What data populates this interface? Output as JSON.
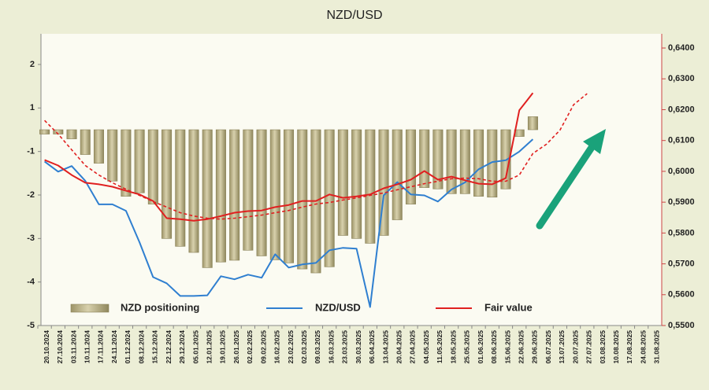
{
  "chart_data": {
    "type": "combo",
    "title": "NZD/USD",
    "categories": [
      "20.10.2024",
      "27.10.2024",
      "03.11.2024",
      "10.11.2024",
      "17.11.2024",
      "24.11.2024",
      "01.12.2024",
      "08.12.2024",
      "15.12.2024",
      "22.12.2024",
      "29.12.2024",
      "05.01.2025",
      "12.01.2025",
      "19.01.2025",
      "26.01.2025",
      "02.02.2025",
      "09.02.2025",
      "16.02.2025",
      "23.02.2025",
      "02.03.2025",
      "09.03.2025",
      "16.03.2025",
      "23.03.2025",
      "30.03.2025",
      "06.04.2025",
      "13.04.2025",
      "20.04.2025",
      "27.04.2025",
      "04.05.2025",
      "11.05.2025",
      "18.05.2025",
      "25.05.2025",
      "01.06.2025",
      "08.06.2025",
      "15.06.2025",
      "22.06.2025",
      "29.06.2025",
      "06.07.2025",
      "13.07.2025",
      "20.07.2025",
      "27.07.2025",
      "03.08.2025",
      "10.08.2025",
      "17.08.2025",
      "24.08.2025",
      "31.08.2025"
    ],
    "series": [
      {
        "name": "NZD positioning",
        "type": "bar",
        "color": "#bfb58a",
        "values": [
          -0.2,
          -0.2,
          -0.42,
          -1.07,
          -1.27,
          -1.68,
          -2.03,
          -1.95,
          -2.21,
          -3.0,
          -3.18,
          -3.32,
          -3.67,
          -3.54,
          -3.5,
          -3.27,
          -3.4,
          -3.49,
          -3.56,
          -3.7,
          -3.79,
          -3.65,
          -2.93,
          -3.0,
          -3.11,
          -2.93,
          -2.57,
          -2.21,
          -1.83,
          -1.86,
          -1.97,
          -1.97,
          -2.03,
          -2.05,
          -1.86,
          -0.31,
          0.6,
          null,
          null,
          null,
          null,
          null,
          null,
          null,
          null,
          null
        ]
      },
      {
        "name": "NZD/USD",
        "type": "line",
        "axis": "y2",
        "color": "#2f7fd0",
        "values": [
          0.6032,
          0.5999,
          0.6017,
          0.5969,
          0.5893,
          0.5893,
          0.5872,
          0.577,
          0.5657,
          0.5637,
          0.5596,
          0.5596,
          0.5598,
          0.566,
          0.565,
          0.5665,
          0.5655,
          0.5731,
          0.5688,
          0.5698,
          0.5703,
          0.5744,
          0.5752,
          0.5749,
          0.556,
          0.5922,
          0.5965,
          0.5925,
          0.5922,
          0.5902,
          0.5941,
          0.5964,
          0.6007,
          0.603,
          0.6036,
          0.6064,
          0.6104,
          null,
          null,
          null,
          null,
          null,
          null,
          null,
          null,
          null
        ]
      },
      {
        "name": "Fair value",
        "type": "line",
        "axis": "y2",
        "color": "#e02020",
        "values": [
          0.6037,
          0.6019,
          0.5988,
          0.5963,
          0.5958,
          0.595,
          0.5937,
          0.5925,
          0.5904,
          0.5848,
          0.5845,
          0.584,
          0.5845,
          0.5855,
          0.5866,
          0.5871,
          0.5873,
          0.5884,
          0.5891,
          0.5904,
          0.5904,
          0.5925,
          0.5914,
          0.5919,
          0.5925,
          0.5945,
          0.5958,
          0.5973,
          0.6001,
          0.5973,
          0.5983,
          0.5971,
          0.596,
          0.5958,
          0.5978,
          0.6198,
          0.6254,
          null,
          null,
          null,
          null,
          null,
          null,
          null,
          null,
          null
        ]
      },
      {
        "type": "line",
        "axis": "y2",
        "dashed": true,
        "color": "#e02020",
        "values": [
          0.6165,
          0.6121,
          0.607,
          0.6019,
          0.5988,
          0.5963,
          0.5942,
          0.5922,
          0.5902,
          0.5884,
          0.5866,
          0.5855,
          0.5848,
          0.5845,
          0.5848,
          0.5853,
          0.5858,
          0.5866,
          0.5873,
          0.5884,
          0.5894,
          0.5899,
          0.5907,
          0.5914,
          0.5922,
          0.593,
          0.594,
          0.595,
          0.596,
          0.5968,
          0.5976,
          0.5978,
          0.5976,
          0.5968,
          0.5968,
          0.5988,
          0.6058,
          0.6088,
          0.6134,
          0.6216,
          0.6252,
          null,
          null,
          null,
          null,
          null
        ]
      }
    ],
    "ylim": [
      -5,
      2.7
    ],
    "yticks": [
      -5,
      -4,
      -3,
      -2,
      -1,
      1,
      2
    ],
    "y2lim": [
      0.55,
      0.6446
    ],
    "y2ticks": [
      {
        "value": 0.55,
        "label": "0,5500"
      },
      {
        "value": 0.56,
        "label": "0,5600"
      },
      {
        "value": 0.57,
        "label": "0,5700"
      },
      {
        "value": 0.58,
        "label": "0,5800"
      },
      {
        "value": 0.59,
        "label": "0,5900"
      },
      {
        "value": 0.6,
        "label": "0,6000"
      },
      {
        "value": 0.61,
        "label": "0,6100"
      },
      {
        "value": 0.62,
        "label": "0,6200"
      },
      {
        "value": 0.63,
        "label": "0,6300"
      },
      {
        "value": 0.64,
        "label": "0,6400"
      }
    ],
    "legend": "bottom-left"
  }
}
